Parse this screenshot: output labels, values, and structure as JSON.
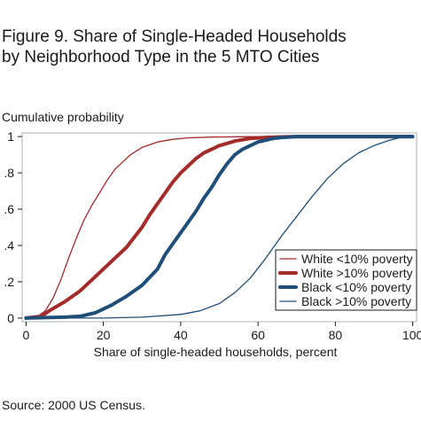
{
  "title_line1": "Figure 9. Share of Single-Headed Households",
  "title_line2": "by Neighborhood Type in the 5 MTO Cities",
  "source": "Source: 2000 US Census.",
  "colors": {
    "dark_red": "#a52a2a",
    "navy": "#1f4e79",
    "axis": "#1a1a1a",
    "frame": "#b0b0b0"
  },
  "chart_data": {
    "type": "line",
    "title": "Figure 9. Share of Single-Headed Households by Neighborhood Type in the 5 MTO Cities",
    "ylabel": "Cumulative probability",
    "xlabel": "Share of single-headed households, percent",
    "xlim": [
      -1,
      101
    ],
    "ylim": [
      -0.02,
      1.02
    ],
    "x_ticks": [
      0,
      20,
      40,
      60,
      80,
      100
    ],
    "x_tick_labels": [
      "0",
      "20",
      "40",
      "60",
      "80",
      "100"
    ],
    "y_ticks": [
      0,
      0.2,
      0.4,
      0.6,
      0.8,
      1
    ],
    "y_tick_labels": [
      "0",
      ".2",
      ".4",
      ".6",
      ".8",
      "1"
    ],
    "grid": false,
    "legend_position": "bottom-right",
    "series": [
      {
        "name": "White <10% poverty",
        "color": "#a52a2a",
        "style": "thin",
        "x": [
          0,
          3,
          5,
          7,
          9,
          11,
          13,
          15,
          17,
          19,
          21,
          23,
          25,
          27,
          30,
          34,
          38,
          42,
          48,
          55,
          65,
          80,
          100
        ],
        "y": [
          0,
          0.01,
          0.04,
          0.11,
          0.21,
          0.33,
          0.44,
          0.54,
          0.62,
          0.69,
          0.76,
          0.82,
          0.86,
          0.9,
          0.94,
          0.97,
          0.985,
          0.993,
          0.997,
          0.999,
          1,
          1,
          1
        ]
      },
      {
        "name": "White >10% poverty",
        "color": "#a52a2a",
        "style": "thick",
        "x": [
          0,
          4,
          6,
          10,
          14,
          18,
          22,
          26,
          30,
          32,
          34,
          36,
          38,
          40,
          42,
          44,
          46,
          48,
          50,
          54,
          58,
          62,
          66,
          70,
          80,
          100
        ],
        "y": [
          0,
          0.01,
          0.04,
          0.09,
          0.15,
          0.23,
          0.31,
          0.39,
          0.5,
          0.57,
          0.63,
          0.69,
          0.75,
          0.8,
          0.84,
          0.88,
          0.91,
          0.93,
          0.95,
          0.975,
          0.99,
          0.995,
          0.998,
          1,
          1,
          1
        ]
      },
      {
        "name": "Black <10% poverty",
        "color": "#1f4e79",
        "style": "thick",
        "x": [
          0,
          10,
          14,
          18,
          22,
          26,
          30,
          34,
          36,
          38,
          40,
          42,
          44,
          46,
          48,
          50,
          52,
          54,
          56,
          58,
          60,
          62,
          64,
          66,
          70,
          80,
          100
        ],
        "y": [
          0,
          0.005,
          0.01,
          0.03,
          0.07,
          0.12,
          0.18,
          0.27,
          0.35,
          0.41,
          0.47,
          0.53,
          0.59,
          0.66,
          0.72,
          0.79,
          0.85,
          0.9,
          0.93,
          0.95,
          0.97,
          0.98,
          0.99,
          0.995,
          1,
          1,
          1
        ]
      },
      {
        "name": "Black >10% poverty",
        "color": "#1f4e79",
        "style": "thin",
        "x": [
          0,
          20,
          30,
          40,
          45,
          50,
          54,
          58,
          62,
          66,
          70,
          74,
          78,
          82,
          86,
          90,
          94,
          97,
          100
        ],
        "y": [
          0,
          0.0,
          0.005,
          0.02,
          0.04,
          0.08,
          0.14,
          0.22,
          0.33,
          0.45,
          0.56,
          0.67,
          0.77,
          0.85,
          0.91,
          0.95,
          0.98,
          0.995,
          1
        ]
      }
    ]
  }
}
